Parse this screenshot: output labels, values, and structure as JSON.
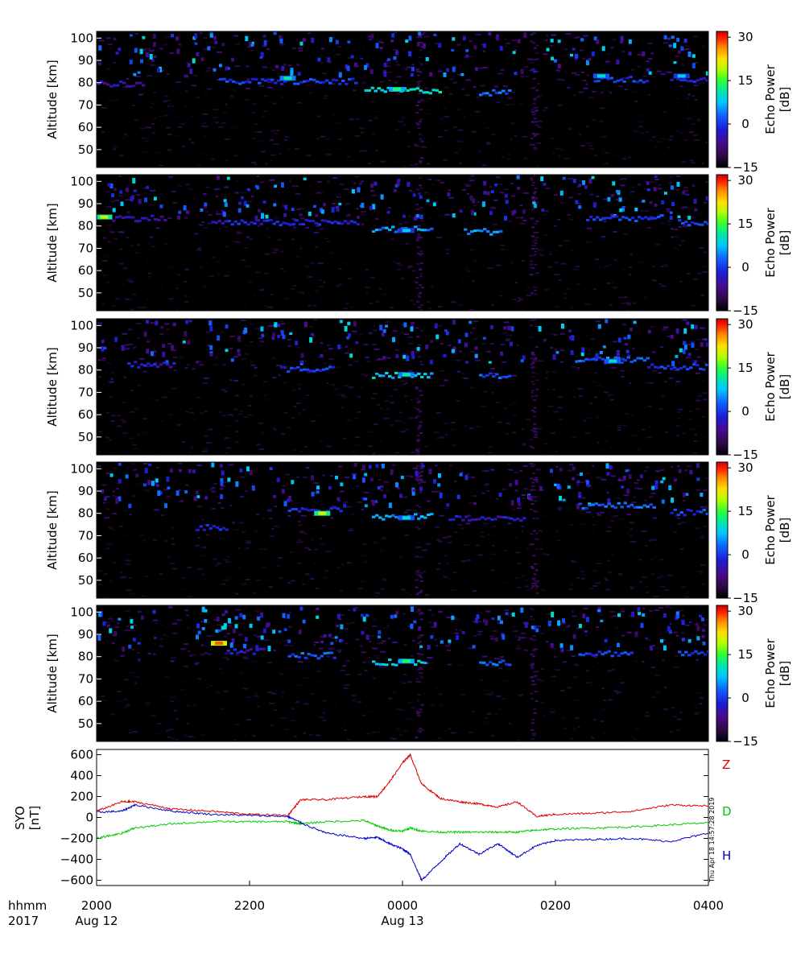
{
  "chart_data": [
    {
      "type": "heatmap",
      "panel": 1,
      "ylabel": "Altitude [km]",
      "yticks": [
        "100",
        "90",
        "80",
        "70",
        "60",
        "50"
      ],
      "ylim": [
        42,
        103
      ],
      "colorbar": {
        "label": "Echo Power [dB]",
        "ticks": [
          "30",
          "15",
          "0",
          "−15"
        ],
        "range": [
          -15,
          32
        ]
      },
      "echo_layers": [
        {
          "x": [
            20.0,
            20.6
          ],
          "alt": 80,
          "power": -5
        },
        {
          "x": [
            21.6,
            23.4
          ],
          "alt": 81,
          "power": 0
        },
        {
          "x": [
            23.5,
            24.5
          ],
          "alt": 77,
          "power": 10
        },
        {
          "x": [
            25.0,
            25.4
          ],
          "alt": 76,
          "power": 2
        },
        {
          "x": [
            26.5,
            27.2
          ],
          "alt": 82,
          "power": 0
        },
        {
          "x": [
            27.5,
            28.0
          ],
          "alt": 82,
          "power": -3
        }
      ],
      "bright_spots": [
        {
          "x": 23.93,
          "alt": 77,
          "power": 14
        },
        {
          "x": 22.5,
          "alt": 82,
          "power": 12
        },
        {
          "x": 26.6,
          "alt": 83,
          "power": 10
        },
        {
          "x": 27.65,
          "alt": 83,
          "power": 8
        }
      ]
    },
    {
      "type": "heatmap",
      "panel": 2,
      "ylabel": "Altitude [km]",
      "yticks": [
        "100",
        "90",
        "80",
        "70",
        "60",
        "50"
      ],
      "ylim": [
        42,
        103
      ],
      "colorbar": {
        "label": "Echo Power [dB]",
        "ticks": [
          "30",
          "15",
          "0",
          "−15"
        ],
        "range": [
          -15,
          32
        ]
      },
      "echo_layers": [
        {
          "x": [
            20.2,
            20.9
          ],
          "alt": 84,
          "power": -5
        },
        {
          "x": [
            21.5,
            23.4
          ],
          "alt": 82,
          "power": -2
        },
        {
          "x": [
            23.6,
            24.4
          ],
          "alt": 79,
          "power": 5
        },
        {
          "x": [
            24.8,
            25.3
          ],
          "alt": 78,
          "power": 5
        },
        {
          "x": [
            26.4,
            27.4
          ],
          "alt": 84,
          "power": 0
        },
        {
          "x": [
            27.6,
            28.0
          ],
          "alt": 82,
          "power": 0
        }
      ],
      "bright_spots": [
        {
          "x": 20.1,
          "alt": 84,
          "power": 20
        },
        {
          "x": 24.05,
          "alt": 78,
          "power": 8
        }
      ]
    },
    {
      "type": "heatmap",
      "panel": 3,
      "ylabel": "Altitude [km]",
      "yticks": [
        "100",
        "90",
        "80",
        "70",
        "60",
        "50"
      ],
      "ylim": [
        42,
        103
      ],
      "colorbar": {
        "label": "Echo Power [dB]",
        "ticks": [
          "30",
          "15",
          "0",
          "−15"
        ],
        "range": [
          -15,
          32
        ]
      },
      "echo_layers": [
        {
          "x": [
            20.4,
            21.0
          ],
          "alt": 83,
          "power": -3
        },
        {
          "x": [
            22.4,
            23.1
          ],
          "alt": 81,
          "power": 0
        },
        {
          "x": [
            23.6,
            24.4
          ],
          "alt": 78,
          "power": 8
        },
        {
          "x": [
            25.0,
            25.4
          ],
          "alt": 78,
          "power": 2
        },
        {
          "x": [
            26.3,
            27.2
          ],
          "alt": 85,
          "power": 2
        },
        {
          "x": [
            27.2,
            28.0
          ],
          "alt": 82,
          "power": 0
        }
      ],
      "bright_spots": [
        {
          "x": 24.05,
          "alt": 78,
          "power": 12
        },
        {
          "x": 26.75,
          "alt": 84,
          "power": 10
        }
      ]
    },
    {
      "type": "heatmap",
      "panel": 4,
      "ylabel": "Altitude [km]",
      "yticks": [
        "100",
        "90",
        "80",
        "70",
        "60",
        "50"
      ],
      "ylim": [
        42,
        103
      ],
      "colorbar": {
        "label": "Echo Power [dB]",
        "ticks": [
          "30",
          "15",
          "0",
          "−15"
        ],
        "range": [
          -15,
          32
        ]
      },
      "echo_layers": [
        {
          "x": [
            21.3,
            21.7
          ],
          "alt": 74,
          "power": -2
        },
        {
          "x": [
            22.5,
            23.2
          ],
          "alt": 82,
          "power": 0
        },
        {
          "x": [
            23.6,
            24.4
          ],
          "alt": 79,
          "power": 6
        },
        {
          "x": [
            24.6,
            25.6
          ],
          "alt": 78,
          "power": -3
        },
        {
          "x": [
            26.3,
            27.3
          ],
          "alt": 84,
          "power": 2
        },
        {
          "x": [
            27.5,
            28.0
          ],
          "alt": 81,
          "power": 0
        }
      ],
      "bright_spots": [
        {
          "x": 22.95,
          "alt": 80,
          "power": 20
        },
        {
          "x": 24.05,
          "alt": 78,
          "power": 10
        }
      ]
    },
    {
      "type": "heatmap",
      "panel": 5,
      "ylabel": "Altitude [km]",
      "yticks": [
        "100",
        "90",
        "80",
        "70",
        "60",
        "50"
      ],
      "ylim": [
        42,
        103
      ],
      "colorbar": {
        "label": "Echo Power [dB]",
        "ticks": [
          "30",
          "15",
          "0",
          "−15"
        ],
        "range": [
          -15,
          32
        ]
      },
      "echo_layers": [
        {
          "x": [
            21.7,
            22.2
          ],
          "alt": 83,
          "power": -3
        },
        {
          "x": [
            22.5,
            23.1
          ],
          "alt": 81,
          "power": 2
        },
        {
          "x": [
            23.6,
            24.3
          ],
          "alt": 78,
          "power": 8
        },
        {
          "x": [
            25.0,
            25.4
          ],
          "alt": 78,
          "power": 2
        },
        {
          "x": [
            26.3,
            27.0
          ],
          "alt": 82,
          "power": 0
        },
        {
          "x": [
            27.6,
            28.0
          ],
          "alt": 82,
          "power": 0
        }
      ],
      "bright_spots": [
        {
          "x": 24.05,
          "alt": 78,
          "power": 14
        },
        {
          "x": 21.6,
          "alt": 86,
          "power": 28
        }
      ]
    },
    {
      "type": "line",
      "panel": 6,
      "ylabel": "SYO [nT]",
      "yticks": [
        "600",
        "400",
        "200",
        "0",
        "−200",
        "−400",
        "−600"
      ],
      "ylim": [
        -650,
        650
      ],
      "x_hours": [
        20.0,
        20.33,
        20.5,
        21.0,
        21.5,
        22.0,
        22.5,
        22.67,
        23.0,
        23.5,
        23.67,
        23.83,
        24.0,
        24.1,
        24.25,
        24.5,
        24.75,
        25.0,
        25.25,
        25.5,
        25.75,
        26.0,
        26.5,
        27.0,
        27.5,
        28.0
      ],
      "series": [
        {
          "name": "Z",
          "color": "#dd0000",
          "values": [
            60,
            150,
            150,
            80,
            60,
            30,
            20,
            170,
            170,
            200,
            200,
            340,
            520,
            600,
            320,
            180,
            150,
            130,
            100,
            150,
            10,
            30,
            40,
            60,
            120,
            110
          ]
        },
        {
          "name": "D",
          "color": "#00cc00",
          "values": [
            -200,
            -150,
            -100,
            -60,
            -40,
            -40,
            -40,
            -60,
            -40,
            -30,
            -80,
            -120,
            -130,
            -100,
            -130,
            -140,
            -140,
            -140,
            -140,
            -140,
            -120,
            -110,
            -100,
            -90,
            -70,
            -50
          ]
        },
        {
          "name": "H",
          "color": "#0000cc",
          "values": [
            50,
            60,
            120,
            60,
            30,
            20,
            10,
            -50,
            -150,
            -200,
            -190,
            -250,
            -300,
            -350,
            -600,
            -420,
            -250,
            -350,
            -250,
            -380,
            -270,
            -220,
            -210,
            -200,
            -230,
            -150
          ]
        }
      ],
      "stamp": "Thu Apr 18 14:57:28 2019"
    }
  ],
  "time_axis": {
    "row1_label": "hhmm",
    "row2_label": "2017",
    "ticks": [
      {
        "hour": 20,
        "label": "2000",
        "date": "Aug 12"
      },
      {
        "hour": 22,
        "label": "2200",
        "date": ""
      },
      {
        "hour": 24,
        "label": "0000",
        "date": "Aug 13"
      },
      {
        "hour": 26,
        "label": "0200",
        "date": ""
      },
      {
        "hour": 28,
        "label": "0400",
        "date": ""
      }
    ],
    "range_hours": [
      20,
      28
    ]
  }
}
